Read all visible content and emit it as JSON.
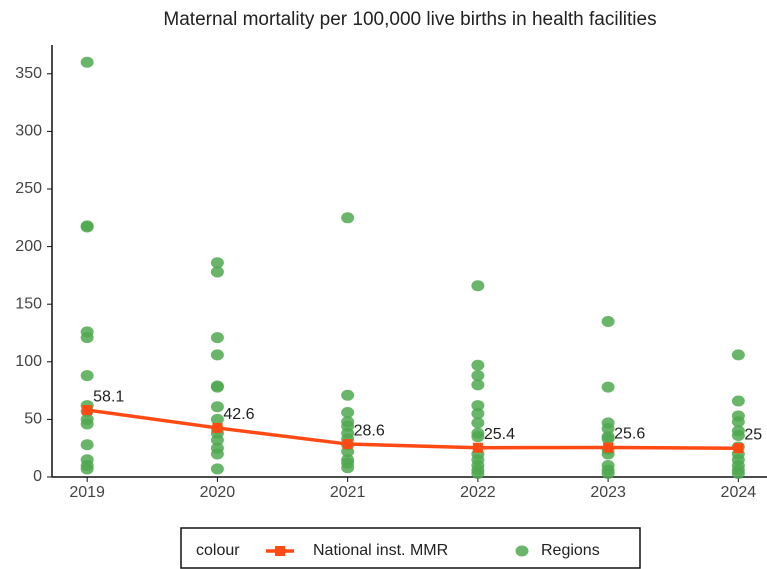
{
  "chart_data": {
    "type": "line",
    "title": "Maternal mortality per 100,000 live births in health facilities",
    "legend_title": "colour",
    "xlim": [
      2018.73,
      2024.22
    ],
    "xticks": [
      2019,
      2020,
      2021,
      2022,
      2023,
      2024
    ],
    "ylim": [
      0,
      375
    ],
    "yticks": [
      0,
      50,
      100,
      150,
      200,
      250,
      300,
      350
    ],
    "grid": false,
    "series": [
      {
        "name": "National inst. MMR",
        "type": "line",
        "color": "#ff4a14",
        "x": [
          2019,
          2020,
          2021,
          2022,
          2023,
          2024
        ],
        "values": [
          58.1,
          42.6,
          28.6,
          25.4,
          25.6,
          25
        ]
      },
      {
        "name": "Regions",
        "type": "scatter",
        "color": "#4fa84f",
        "x": [
          2019,
          2019,
          2019,
          2019,
          2019,
          2019,
          2019,
          2019,
          2019,
          2019,
          2019,
          2019,
          2019,
          2019,
          2020,
          2020,
          2020,
          2020,
          2020,
          2020,
          2020,
          2020,
          2020,
          2020,
          2020,
          2020,
          2020,
          2020,
          2021,
          2021,
          2021,
          2021,
          2021,
          2021,
          2021,
          2021,
          2021,
          2021,
          2021,
          2021,
          2022,
          2022,
          2022,
          2022,
          2022,
          2022,
          2022,
          2022,
          2022,
          2022,
          2022,
          2022,
          2022,
          2022,
          2023,
          2023,
          2023,
          2023,
          2023,
          2023,
          2023,
          2023,
          2023,
          2023,
          2023,
          2024,
          2024,
          2024,
          2024,
          2024,
          2024,
          2024,
          2024,
          2024,
          2024,
          2024,
          2024
        ],
        "values": [
          360,
          218,
          217,
          126,
          121,
          88,
          62,
          57,
          50,
          46,
          28,
          15,
          10,
          7,
          186,
          178,
          121,
          106,
          79,
          78,
          61,
          50,
          42,
          38,
          32,
          25,
          20,
          7,
          225,
          71,
          56,
          48,
          44,
          38,
          33,
          28,
          22,
          15,
          12,
          8,
          166,
          97,
          88,
          80,
          62,
          55,
          47,
          38,
          35,
          20,
          15,
          10,
          6,
          3,
          135,
          78,
          47,
          42,
          35,
          33,
          24,
          20,
          10,
          6,
          3,
          106,
          66,
          53,
          48,
          40,
          36,
          26,
          20,
          15,
          10,
          6,
          3
        ]
      }
    ]
  }
}
